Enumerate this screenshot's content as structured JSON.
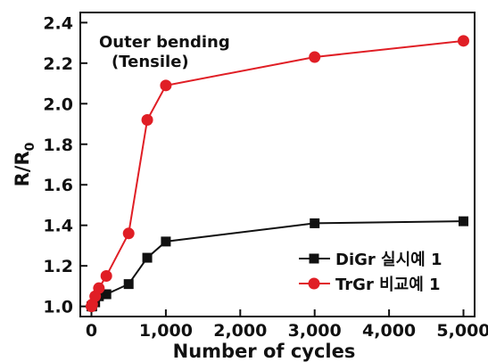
{
  "chart_data": {
    "type": "line",
    "xlabel": "Number of  cycles",
    "ylabel": "R/R",
    "ylabel_subscript": "0",
    "xlim": [
      -150,
      5150
    ],
    "ylim": [
      0.95,
      2.45
    ],
    "x_ticks": [
      0,
      1000,
      2000,
      3000,
      4000,
      5000
    ],
    "x_tick_labels": [
      "0",
      "1,000",
      "2,000",
      "3,000",
      "4,000",
      "5,000"
    ],
    "y_ticks": [
      1.0,
      1.2,
      1.4,
      1.6,
      1.8,
      2.0,
      2.2,
      2.4
    ],
    "y_tick_labels": [
      "1.0",
      "1.2",
      "1.4",
      "1.6",
      "1.8",
      "2.0",
      "2.2",
      "2.4"
    ],
    "annotation": [
      "Outer bending",
      "(Tensile)"
    ],
    "grid": false,
    "legend_position": "bottom-right",
    "series": [
      {
        "name": "DiGr 실시예 1",
        "color": "#111111",
        "marker": "square",
        "x": [
          0,
          10,
          50,
          100,
          200,
          500,
          750,
          1000,
          3000,
          5000
        ],
        "y": [
          1.0,
          1.0,
          1.02,
          1.05,
          1.06,
          1.11,
          1.24,
          1.32,
          1.41,
          1.42
        ]
      },
      {
        "name": "TrGr 비교예 1",
        "color": "#e01e25",
        "marker": "circle",
        "x": [
          0,
          10,
          50,
          100,
          200,
          500,
          750,
          1000,
          3000,
          5000
        ],
        "y": [
          1.0,
          1.01,
          1.05,
          1.09,
          1.15,
          1.36,
          1.92,
          2.09,
          2.23,
          2.31
        ]
      }
    ]
  }
}
